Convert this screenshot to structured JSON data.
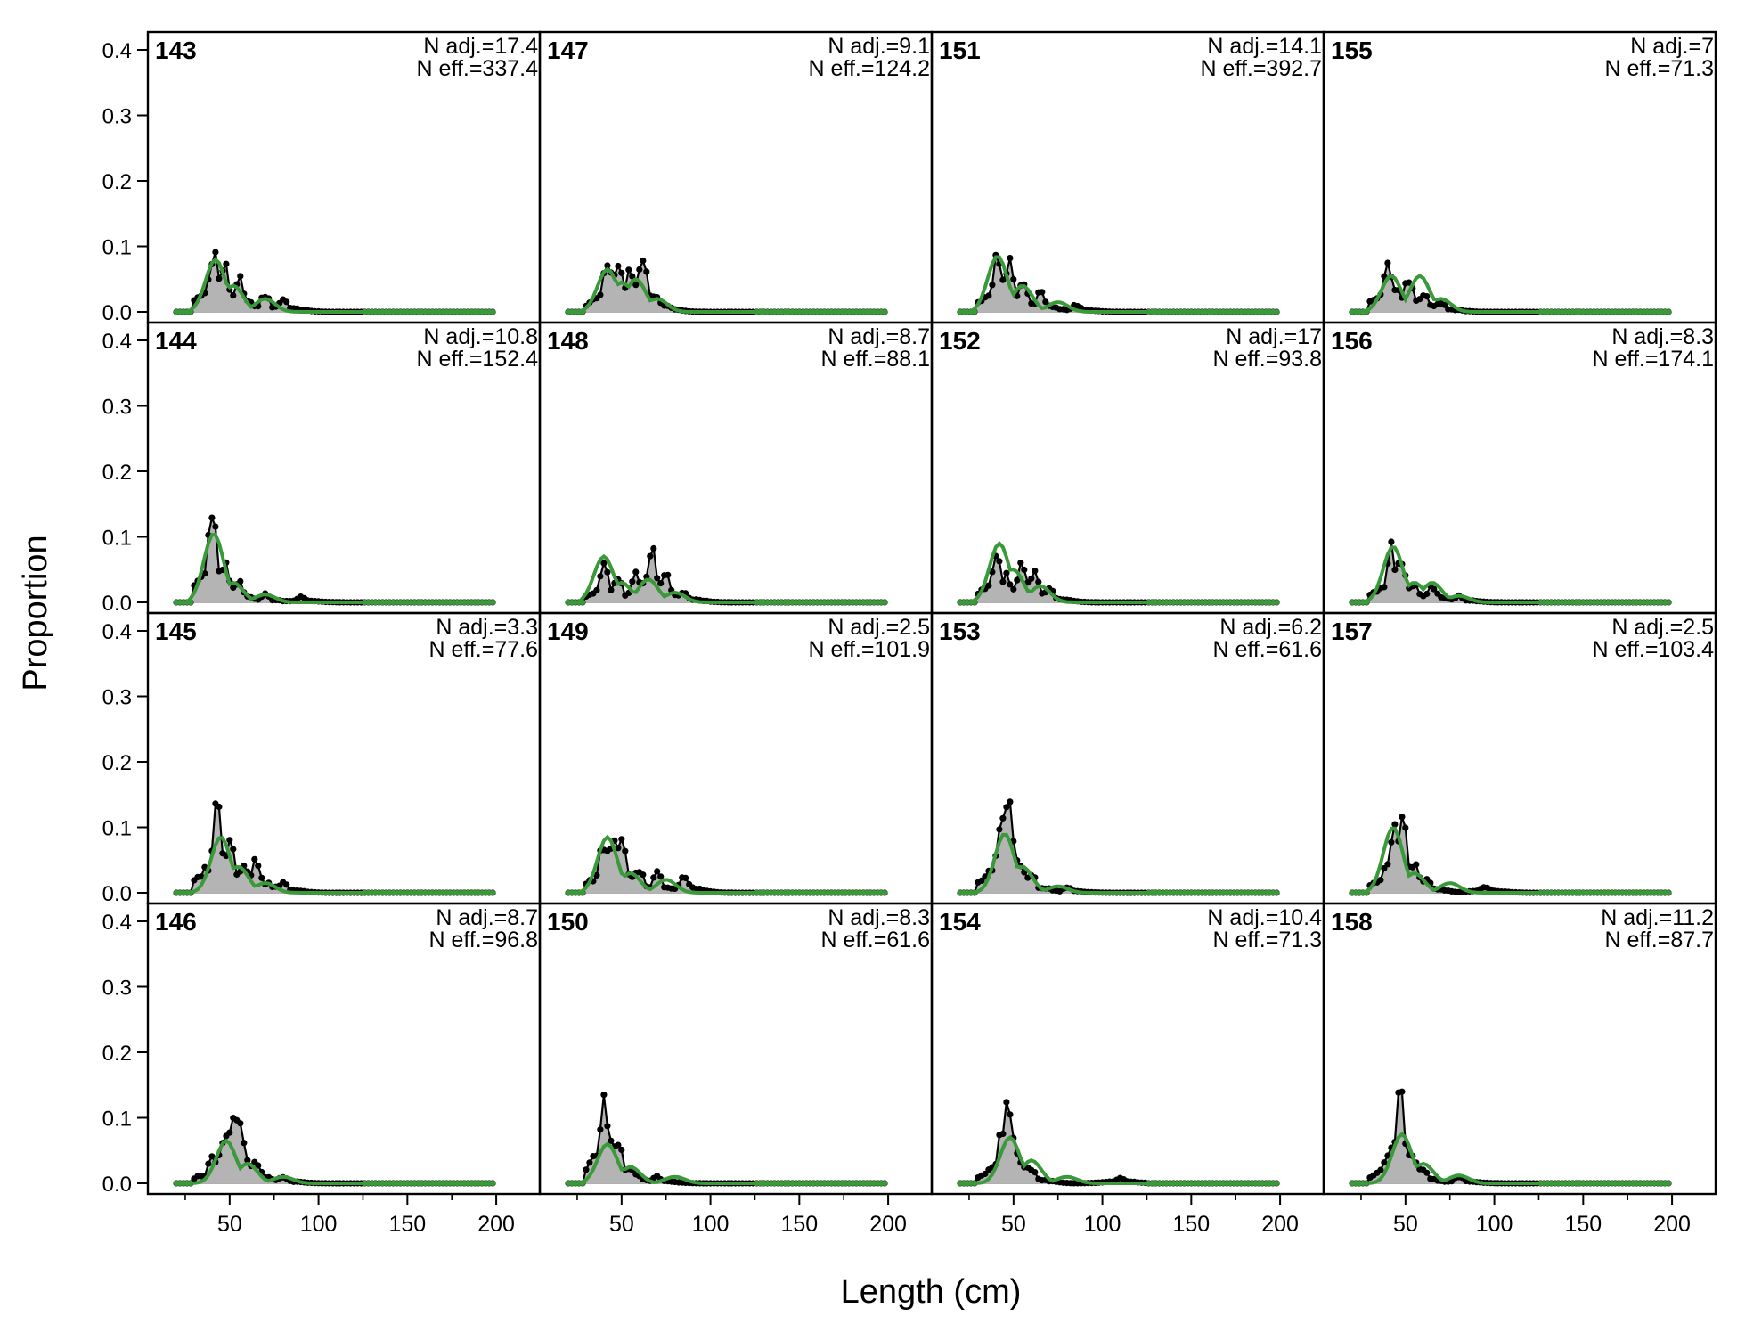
{
  "chart_data": {
    "type": "line",
    "layout": "4x4 panel grid, columns fill top-to-bottom",
    "xlabel": "Length (cm)",
    "ylabel": "Proportion",
    "xlim": [
      20,
      200
    ],
    "ylim": [
      0,
      0.4
    ],
    "x_ticks": [
      50,
      100,
      150,
      200
    ],
    "y_ticks": [
      "0.0",
      "0.1",
      "0.2",
      "0.3",
      "0.4"
    ],
    "grid": false,
    "colors": {
      "observed_fill": "#b4b4b4",
      "observed_line": "#000000",
      "expected_line": "#3a9a3a",
      "zero_line": "#b0b0b0",
      "frame": "#000000"
    },
    "panels": [
      {
        "id": "143",
        "n_adj": "N adj.=17.4",
        "n_eff": "N eff.=337.4",
        "obs_peaks": [
          [
            41,
            0.095
          ],
          [
            47,
            0.07
          ],
          [
            55,
            0.05
          ],
          [
            70,
            0.025
          ],
          [
            80,
            0.02
          ]
        ],
        "exp_peaks": [
          [
            42,
            0.08
          ],
          [
            52,
            0.04
          ],
          [
            70,
            0.02
          ]
        ]
      },
      {
        "id": "144",
        "n_adj": "N adj.=10.8",
        "n_eff": "N eff.=152.4",
        "obs_peaks": [
          [
            40,
            0.135
          ],
          [
            47,
            0.06
          ],
          [
            55,
            0.03
          ],
          [
            70,
            0.012
          ],
          [
            90,
            0.008
          ]
        ],
        "exp_peaks": [
          [
            41,
            0.105
          ],
          [
            52,
            0.03
          ],
          [
            70,
            0.012
          ]
        ]
      },
      {
        "id": "145",
        "n_adj": "N adj.=3.3",
        "n_eff": "N eff.=77.6",
        "obs_peaks": [
          [
            43,
            0.135
          ],
          [
            50,
            0.09
          ],
          [
            58,
            0.05
          ],
          [
            65,
            0.05
          ],
          [
            80,
            0.015
          ]
        ],
        "exp_peaks": [
          [
            45,
            0.085
          ],
          [
            55,
            0.04
          ],
          [
            70,
            0.015
          ]
        ]
      },
      {
        "id": "146",
        "n_adj": "N adj.=8.7",
        "n_eff": "N eff.=96.8",
        "obs_peaks": [
          [
            40,
            0.04
          ],
          [
            47,
            0.08
          ],
          [
            52,
            0.11
          ],
          [
            55,
            0.105
          ],
          [
            65,
            0.03
          ],
          [
            80,
            0.01
          ]
        ],
        "exp_peaks": [
          [
            48,
            0.065
          ],
          [
            60,
            0.03
          ],
          [
            80,
            0.01
          ]
        ]
      },
      {
        "id": "147",
        "n_adj": "N adj.=9.1",
        "n_eff": "N eff.=124.2",
        "obs_peaks": [
          [
            42,
            0.07
          ],
          [
            48,
            0.075
          ],
          [
            55,
            0.07
          ],
          [
            62,
            0.075
          ],
          [
            70,
            0.02
          ]
        ],
        "exp_peaks": [
          [
            42,
            0.065
          ],
          [
            50,
            0.045
          ],
          [
            58,
            0.05
          ],
          [
            70,
            0.02
          ]
        ]
      },
      {
        "id": "148",
        "n_adj": "N adj.=8.7",
        "n_eff": "N eff.=88.1",
        "obs_peaks": [
          [
            40,
            0.055
          ],
          [
            48,
            0.035
          ],
          [
            58,
            0.04
          ],
          [
            67,
            0.085
          ],
          [
            75,
            0.04
          ],
          [
            85,
            0.015
          ]
        ],
        "exp_peaks": [
          [
            40,
            0.07
          ],
          [
            50,
            0.03
          ],
          [
            65,
            0.035
          ],
          [
            80,
            0.015
          ]
        ]
      },
      {
        "id": "149",
        "n_adj": "N adj.=2.5",
        "n_eff": "N eff.=101.9",
        "obs_peaks": [
          [
            40,
            0.075
          ],
          [
            45,
            0.085
          ],
          [
            50,
            0.08
          ],
          [
            60,
            0.035
          ],
          [
            70,
            0.03
          ],
          [
            85,
            0.025
          ]
        ],
        "exp_peaks": [
          [
            42,
            0.085
          ],
          [
            55,
            0.03
          ],
          [
            75,
            0.02
          ]
        ]
      },
      {
        "id": "150",
        "n_adj": "N adj.=8.3",
        "n_eff": "N eff.=61.6",
        "obs_peaks": [
          [
            40,
            0.13
          ],
          [
            45,
            0.07
          ],
          [
            48,
            0.065
          ],
          [
            55,
            0.02
          ],
          [
            70,
            0.01
          ]
        ],
        "exp_peaks": [
          [
            42,
            0.06
          ],
          [
            55,
            0.025
          ],
          [
            80,
            0.01
          ]
        ]
      },
      {
        "id": "151",
        "n_adj": "N adj.=14.1",
        "n_eff": "N eff.=392.7",
        "obs_peaks": [
          [
            41,
            0.085
          ],
          [
            48,
            0.07
          ],
          [
            55,
            0.05
          ],
          [
            65,
            0.03
          ],
          [
            85,
            0.01
          ]
        ],
        "exp_peaks": [
          [
            41,
            0.085
          ],
          [
            55,
            0.04
          ],
          [
            75,
            0.015
          ]
        ]
      },
      {
        "id": "152",
        "n_adj": "N adj.=17",
        "n_eff": "N eff.=93.8",
        "obs_peaks": [
          [
            40,
            0.075
          ],
          [
            46,
            0.04
          ],
          [
            55,
            0.06
          ],
          [
            62,
            0.045
          ],
          [
            70,
            0.02
          ]
        ],
        "exp_peaks": [
          [
            42,
            0.09
          ],
          [
            50,
            0.05
          ],
          [
            65,
            0.025
          ]
        ]
      },
      {
        "id": "153",
        "n_adj": "N adj.=6.2",
        "n_eff": "N eff.=61.6",
        "obs_peaks": [
          [
            43,
            0.11
          ],
          [
            47,
            0.135
          ],
          [
            52,
            0.05
          ],
          [
            60,
            0.03
          ],
          [
            80,
            0.008
          ]
        ],
        "exp_peaks": [
          [
            45,
            0.09
          ],
          [
            55,
            0.04
          ],
          [
            75,
            0.01
          ]
        ]
      },
      {
        "id": "154",
        "n_adj": "N adj.=10.4",
        "n_eff": "N eff.=71.3",
        "obs_peaks": [
          [
            44,
            0.09
          ],
          [
            47,
            0.13
          ],
          [
            52,
            0.05
          ],
          [
            60,
            0.02
          ],
          [
            110,
            0.008
          ]
        ],
        "exp_peaks": [
          [
            48,
            0.07
          ],
          [
            60,
            0.035
          ],
          [
            80,
            0.01
          ]
        ]
      },
      {
        "id": "155",
        "n_adj": "N adj.=7",
        "n_eff": "N eff.=71.3",
        "obs_peaks": [
          [
            40,
            0.085
          ],
          [
            45,
            0.04
          ],
          [
            52,
            0.05
          ],
          [
            60,
            0.03
          ],
          [
            70,
            0.015
          ]
        ],
        "exp_peaks": [
          [
            42,
            0.055
          ],
          [
            58,
            0.055
          ],
          [
            70,
            0.02
          ]
        ]
      },
      {
        "id": "156",
        "n_adj": "N adj.=8.3",
        "n_eff": "N eff.=174.1",
        "obs_peaks": [
          [
            42,
            0.08
          ],
          [
            47,
            0.075
          ],
          [
            55,
            0.03
          ],
          [
            65,
            0.025
          ],
          [
            80,
            0.01
          ]
        ],
        "exp_peaks": [
          [
            43,
            0.085
          ],
          [
            55,
            0.03
          ],
          [
            65,
            0.03
          ],
          [
            80,
            0.01
          ]
        ]
      },
      {
        "id": "157",
        "n_adj": "N adj.=2.5",
        "n_eff": "N eff.=103.4",
        "obs_peaks": [
          [
            40,
            0.05
          ],
          [
            44,
            0.1
          ],
          [
            48,
            0.115
          ],
          [
            55,
            0.04
          ],
          [
            62,
            0.02
          ],
          [
            95,
            0.01
          ]
        ],
        "exp_peaks": [
          [
            43,
            0.1
          ],
          [
            55,
            0.03
          ],
          [
            75,
            0.015
          ]
        ]
      },
      {
        "id": "158",
        "n_adj": "N adj.=11.2",
        "n_eff": "N eff.=87.7",
        "obs_peaks": [
          [
            42,
            0.06
          ],
          [
            47,
            0.13
          ],
          [
            52,
            0.05
          ],
          [
            60,
            0.02
          ],
          [
            80,
            0.01
          ]
        ],
        "exp_peaks": [
          [
            48,
            0.075
          ],
          [
            60,
            0.03
          ],
          [
            80,
            0.012
          ]
        ]
      }
    ]
  }
}
